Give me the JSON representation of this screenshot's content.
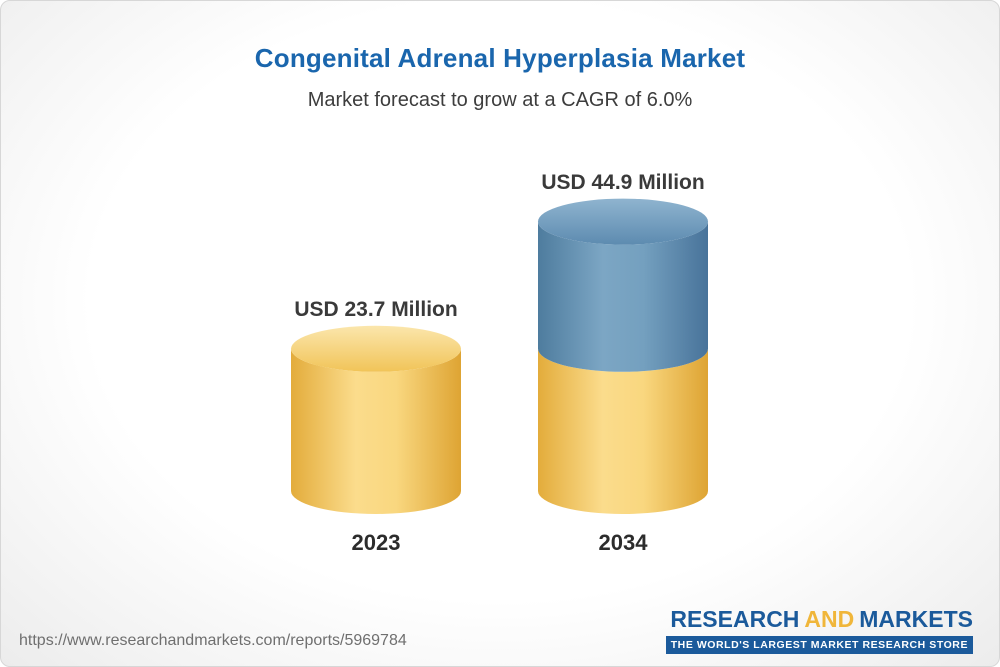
{
  "header": {
    "title": "Congenital Adrenal Hyperplasia Market",
    "subtitle": "Market forecast to grow at a CAGR of 6.0%"
  },
  "chart_data": {
    "type": "bar",
    "style": "3d-cylinder",
    "title": "Congenital Adrenal Hyperplasia Market",
    "subtitle": "Market forecast to grow at a CAGR of 6.0%",
    "unit": "USD Million",
    "cagr_percent": 6.0,
    "xlabel": "",
    "ylabel": "",
    "legend": "none",
    "axes": "none",
    "categories": [
      "2023",
      "2034"
    ],
    "bars": [
      {
        "category": "2023",
        "value": 23.7,
        "value_label": "USD 23.7 Million",
        "segments": [
          {
            "name": "base",
            "value": 23.7,
            "color_key": "yellow"
          }
        ]
      },
      {
        "category": "2034",
        "value": 44.9,
        "value_label": "USD 44.9 Million",
        "segments": [
          {
            "name": "base",
            "value": 23.7,
            "color_key": "yellow"
          },
          {
            "name": "growth",
            "value": 21.2,
            "color_key": "blue"
          }
        ]
      }
    ],
    "colors": {
      "yellow": "#F5C95D",
      "blue": "#5E8CB0"
    }
  },
  "footer": {
    "url": "https://www.researchandmarkets.com/reports/5969784",
    "logo": {
      "research": "RESEARCH",
      "and": "AND",
      "markets": "MARKETS",
      "tagline": "THE WORLD'S LARGEST MARKET RESEARCH STORE"
    }
  }
}
